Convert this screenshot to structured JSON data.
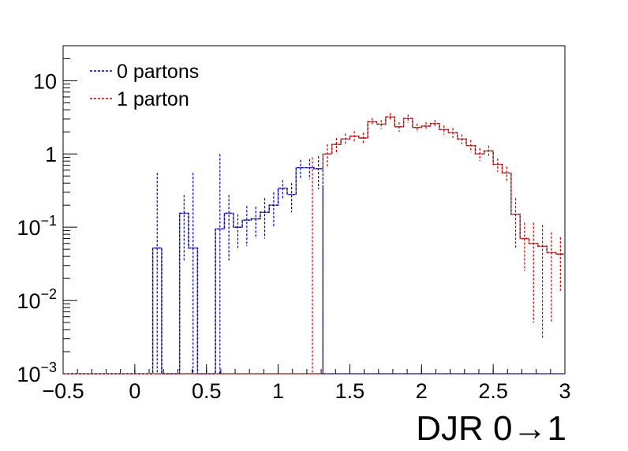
{
  "chart_data": {
    "type": "step-histogram",
    "xlabel": "DJR 0→1",
    "ylabel": "",
    "xlim": [
      -0.5,
      3.0
    ],
    "ylim": [
      0.001,
      30
    ],
    "yscale": "log",
    "grid": false,
    "legend_placement": "top-left",
    "x_ticks": [
      {
        "v": -0.5,
        "label": "−0.5"
      },
      {
        "v": 0,
        "label": "0"
      },
      {
        "v": 0.5,
        "label": "0.5"
      },
      {
        "v": 1,
        "label": "1"
      },
      {
        "v": 1.5,
        "label": "1.5"
      },
      {
        "v": 2,
        "label": "2"
      },
      {
        "v": 2.5,
        "label": "2.5"
      },
      {
        "v": 3,
        "label": "3"
      }
    ],
    "y_ticks": [
      {
        "v": 0.001,
        "base": "10",
        "exp": "−3"
      },
      {
        "v": 0.01,
        "base": "10",
        "exp": "−2"
      },
      {
        "v": 0.1,
        "base": "10",
        "exp": "−1"
      },
      {
        "v": 1,
        "base": "1",
        "exp": ""
      },
      {
        "v": 10,
        "base": "10",
        "exp": ""
      }
    ],
    "bin_width": 0.0625,
    "x_start": -0.5,
    "series": [
      {
        "name": "0 partons",
        "color": "#0000cc",
        "dashed": true,
        "values": [
          0.001,
          0.001,
          0.001,
          0.001,
          0.001,
          0.001,
          0.001,
          0.001,
          0.001,
          0.001,
          0.052,
          0.001,
          0.001,
          0.155,
          0.052,
          0.001,
          0.001,
          0.095,
          0.155,
          0.1,
          0.125,
          0.13,
          0.16,
          0.2,
          0.34,
          0.28,
          0.65,
          0.65,
          0.63,
          0.001,
          0.001,
          0.001,
          0.001,
          0.001,
          0.001,
          0.001,
          0.001,
          0.001,
          0.001,
          0.001,
          0.001,
          0.001,
          0.001,
          0.001,
          0.001,
          0.001,
          0.001,
          0.001,
          0.001,
          0.001,
          0.001,
          0.001,
          0.001,
          0.001,
          0.001,
          0.001
        ],
        "errors": [
          0,
          0,
          0,
          0,
          0,
          0,
          0,
          0,
          0,
          0,
          0.5,
          0,
          0,
          0.12,
          0.5,
          0,
          0,
          0.9,
          0.12,
          0.05,
          0.07,
          0.06,
          0.09,
          0.1,
          0.1,
          0.12,
          0.18,
          0.2,
          0.3,
          0,
          0,
          0,
          0,
          0,
          0,
          0,
          0,
          0,
          0,
          0,
          0,
          0,
          0,
          0,
          0,
          0,
          0,
          0,
          0,
          0,
          0,
          0,
          0,
          0,
          0,
          0
        ]
      },
      {
        "name": "1 parton",
        "color": "#cc0000",
        "dashed": true,
        "values": [
          0.001,
          0.001,
          0.001,
          0.001,
          0.001,
          0.001,
          0.001,
          0.001,
          0.001,
          0.001,
          0.001,
          0.001,
          0.001,
          0.001,
          0.001,
          0.001,
          0.001,
          0.001,
          0.001,
          0.001,
          0.001,
          0.001,
          0.001,
          0.001,
          0.001,
          0.001,
          0.001,
          0.001,
          0.001,
          1.0,
          1.35,
          1.6,
          1.75,
          1.65,
          2.75,
          2.55,
          3.2,
          2.35,
          3.05,
          2.3,
          2.4,
          2.6,
          2.15,
          1.95,
          1.6,
          1.3,
          1.0,
          1.1,
          0.72,
          0.55,
          0.15,
          0.07,
          0.06,
          0.055,
          0.045,
          0.043
        ],
        "errors": [
          0,
          0,
          0,
          0,
          0,
          0,
          0,
          0,
          0,
          0,
          0,
          0,
          0,
          0,
          0,
          0,
          0,
          0,
          0,
          0,
          0,
          0,
          0,
          0,
          0,
          0,
          0,
          0,
          0,
          0.35,
          0.3,
          0.3,
          0.3,
          0.3,
          0.35,
          0.35,
          0.4,
          0.35,
          0.4,
          0.3,
          0.3,
          0.3,
          0.3,
          0.3,
          0.25,
          0.25,
          0.2,
          0.2,
          0.15,
          0.12,
          0.1,
          0.045,
          0.055,
          0.052,
          0.04,
          0.03
        ]
      }
    ],
    "total": {
      "color": "#888888",
      "values": [
        0.001,
        0.001,
        0.001,
        0.001,
        0.001,
        0.001,
        0.001,
        0.001,
        0.001,
        0.001,
        0.052,
        0.001,
        0.001,
        0.155,
        0.052,
        0.001,
        0.001,
        0.095,
        0.155,
        0.1,
        0.125,
        0.13,
        0.16,
        0.2,
        0.34,
        0.28,
        0.65,
        0.65,
        0.63,
        1.0,
        1.35,
        1.6,
        1.75,
        1.65,
        2.75,
        2.55,
        3.2,
        2.35,
        3.05,
        2.3,
        2.4,
        2.6,
        2.15,
        1.95,
        1.6,
        1.3,
        1.0,
        1.1,
        0.72,
        0.55,
        0.15,
        0.07,
        0.06,
        0.055,
        0.045,
        0.043
      ]
    },
    "legend": [
      {
        "label": "0 partons",
        "color": "#0000cc"
      },
      {
        "label": "1 parton",
        "color": "#cc0000"
      }
    ]
  }
}
